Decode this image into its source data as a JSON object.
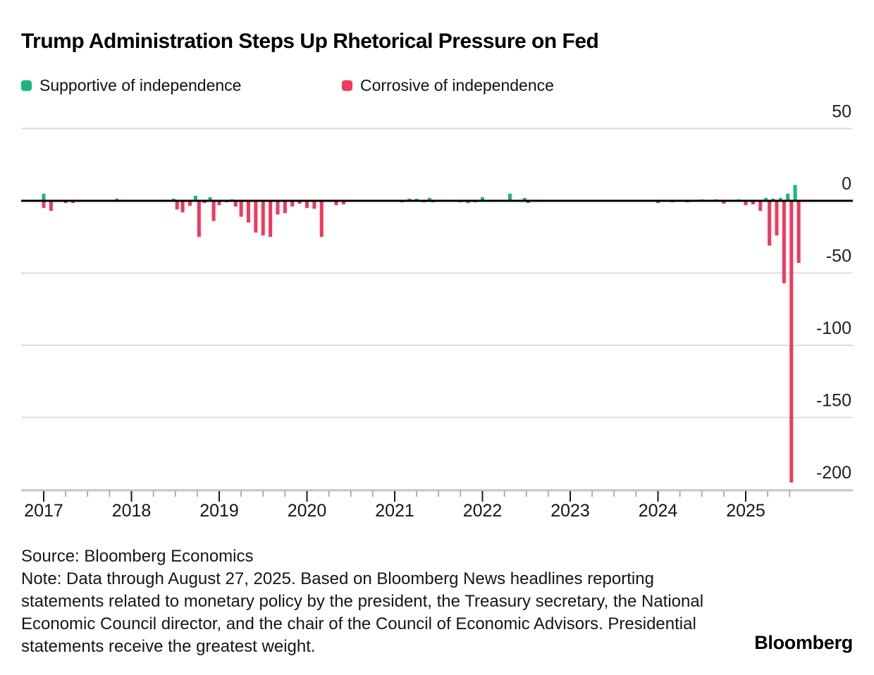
{
  "title": "Trump Administration Steps Up Rhetorical Pressure on Fed",
  "footer": {
    "source": "Source: Bloomberg Economics",
    "note": "Note: Data through August 27, 2025. Based on Bloomberg News headlines reporting statements related to monetary policy by the president, the Treasury secretary, the National Economic Council director, and the chair of the Council of Economic Advisors. Presidential statements receive the greatest weight."
  },
  "branding": "Bloomberg",
  "chart_data": {
    "type": "bar",
    "title": "Trump Administration Steps Up Rhetorical Pressure on Fed",
    "legend_position": "top-left",
    "grid": "horizontal",
    "series": [
      {
        "name": "Supportive of independence",
        "key": "supportive",
        "color": "#1ab77d"
      },
      {
        "name": "Corrosive of independence",
        "key": "corrosive",
        "color": "#f2385c"
      }
    ],
    "x_axis": {
      "unit": "month",
      "start": "2017-01",
      "end": "2025-08",
      "year_ticks": [
        "2017",
        "2018",
        "2019",
        "2020",
        "2021",
        "2022",
        "2023",
        "2024",
        "2025"
      ],
      "minor_tick_every_months": 3
    },
    "y_axis": {
      "side": "right",
      "ticks": [
        50,
        0,
        -50,
        -100,
        -150,
        -200
      ],
      "range": [
        -215,
        70
      ]
    },
    "points": [
      {
        "date": "2017-01",
        "supportive": 5,
        "corrosive": -5,
        "stack": true
      },
      {
        "date": "2017-02",
        "corrosive": -7
      },
      {
        "date": "2017-04",
        "corrosive": -1.5
      },
      {
        "date": "2017-05",
        "corrosive": -1.5
      },
      {
        "date": "2017-11",
        "supportive": 1.5
      },
      {
        "date": "2018-07",
        "supportive": 1.5,
        "corrosive": -6
      },
      {
        "date": "2018-08",
        "corrosive": -8
      },
      {
        "date": "2018-09",
        "corrosive": -3.5
      },
      {
        "date": "2018-10",
        "supportive": 3.5,
        "corrosive": -25
      },
      {
        "date": "2018-11",
        "corrosive": -1.5
      },
      {
        "date": "2018-12",
        "supportive": 2.5,
        "corrosive": -14
      },
      {
        "date": "2019-01",
        "corrosive": -3
      },
      {
        "date": "2019-02",
        "corrosive": -1
      },
      {
        "date": "2019-03",
        "supportive": 1,
        "corrosive": -4
      },
      {
        "date": "2019-04",
        "corrosive": -11
      },
      {
        "date": "2019-05",
        "corrosive": -15
      },
      {
        "date": "2019-06",
        "corrosive": -22
      },
      {
        "date": "2019-07",
        "corrosive": -24
      },
      {
        "date": "2019-08",
        "corrosive": -25
      },
      {
        "date": "2019-09",
        "corrosive": -9.5
      },
      {
        "date": "2019-10",
        "corrosive": -8.5
      },
      {
        "date": "2019-11",
        "corrosive": -4
      },
      {
        "date": "2019-12",
        "corrosive": -2
      },
      {
        "date": "2020-01",
        "corrosive": -5
      },
      {
        "date": "2020-02",
        "corrosive": -5.5
      },
      {
        "date": "2020-03",
        "corrosive": -25
      },
      {
        "date": "2020-05",
        "corrosive": -3
      },
      {
        "date": "2020-06",
        "corrosive": -2.5
      },
      {
        "date": "2021-02",
        "corrosive": -1
      },
      {
        "date": "2021-03",
        "supportive": 1.5
      },
      {
        "date": "2021-04",
        "supportive": 1.5
      },
      {
        "date": "2021-05",
        "corrosive": -1
      },
      {
        "date": "2021-06",
        "supportive": 2,
        "corrosive": -1
      },
      {
        "date": "2021-10",
        "corrosive": -1
      },
      {
        "date": "2021-11",
        "corrosive": -1.5
      },
      {
        "date": "2021-12",
        "corrosive": -1
      },
      {
        "date": "2022-01",
        "supportive": 2.5
      },
      {
        "date": "2022-05",
        "supportive": 5,
        "corrosive": -0.5
      },
      {
        "date": "2022-07",
        "supportive": 2,
        "corrosive": -1.5
      },
      {
        "date": "2022-08",
        "corrosive": -0.5
      },
      {
        "date": "2023-11",
        "corrosive": -0.5
      },
      {
        "date": "2024-01",
        "corrosive": -1.5
      },
      {
        "date": "2024-03",
        "corrosive": -1
      },
      {
        "date": "2024-05",
        "corrosive": -1
      },
      {
        "date": "2024-07",
        "supportive": 1
      },
      {
        "date": "2024-09",
        "supportive": 1
      },
      {
        "date": "2024-10",
        "corrosive": -2
      },
      {
        "date": "2024-12",
        "supportive": 1
      },
      {
        "date": "2025-01",
        "corrosive": -3
      },
      {
        "date": "2025-02",
        "corrosive": -2.5
      },
      {
        "date": "2025-03",
        "corrosive": -7
      },
      {
        "date": "2025-04",
        "supportive": 2,
        "corrosive": -31
      },
      {
        "date": "2025-05",
        "supportive": 1.5,
        "corrosive": -24
      },
      {
        "date": "2025-06",
        "supportive": 2,
        "corrosive": -57
      },
      {
        "date": "2025-07",
        "supportive": 5,
        "corrosive": -195
      },
      {
        "date": "2025-08",
        "supportive": 11,
        "corrosive": -43
      }
    ]
  }
}
